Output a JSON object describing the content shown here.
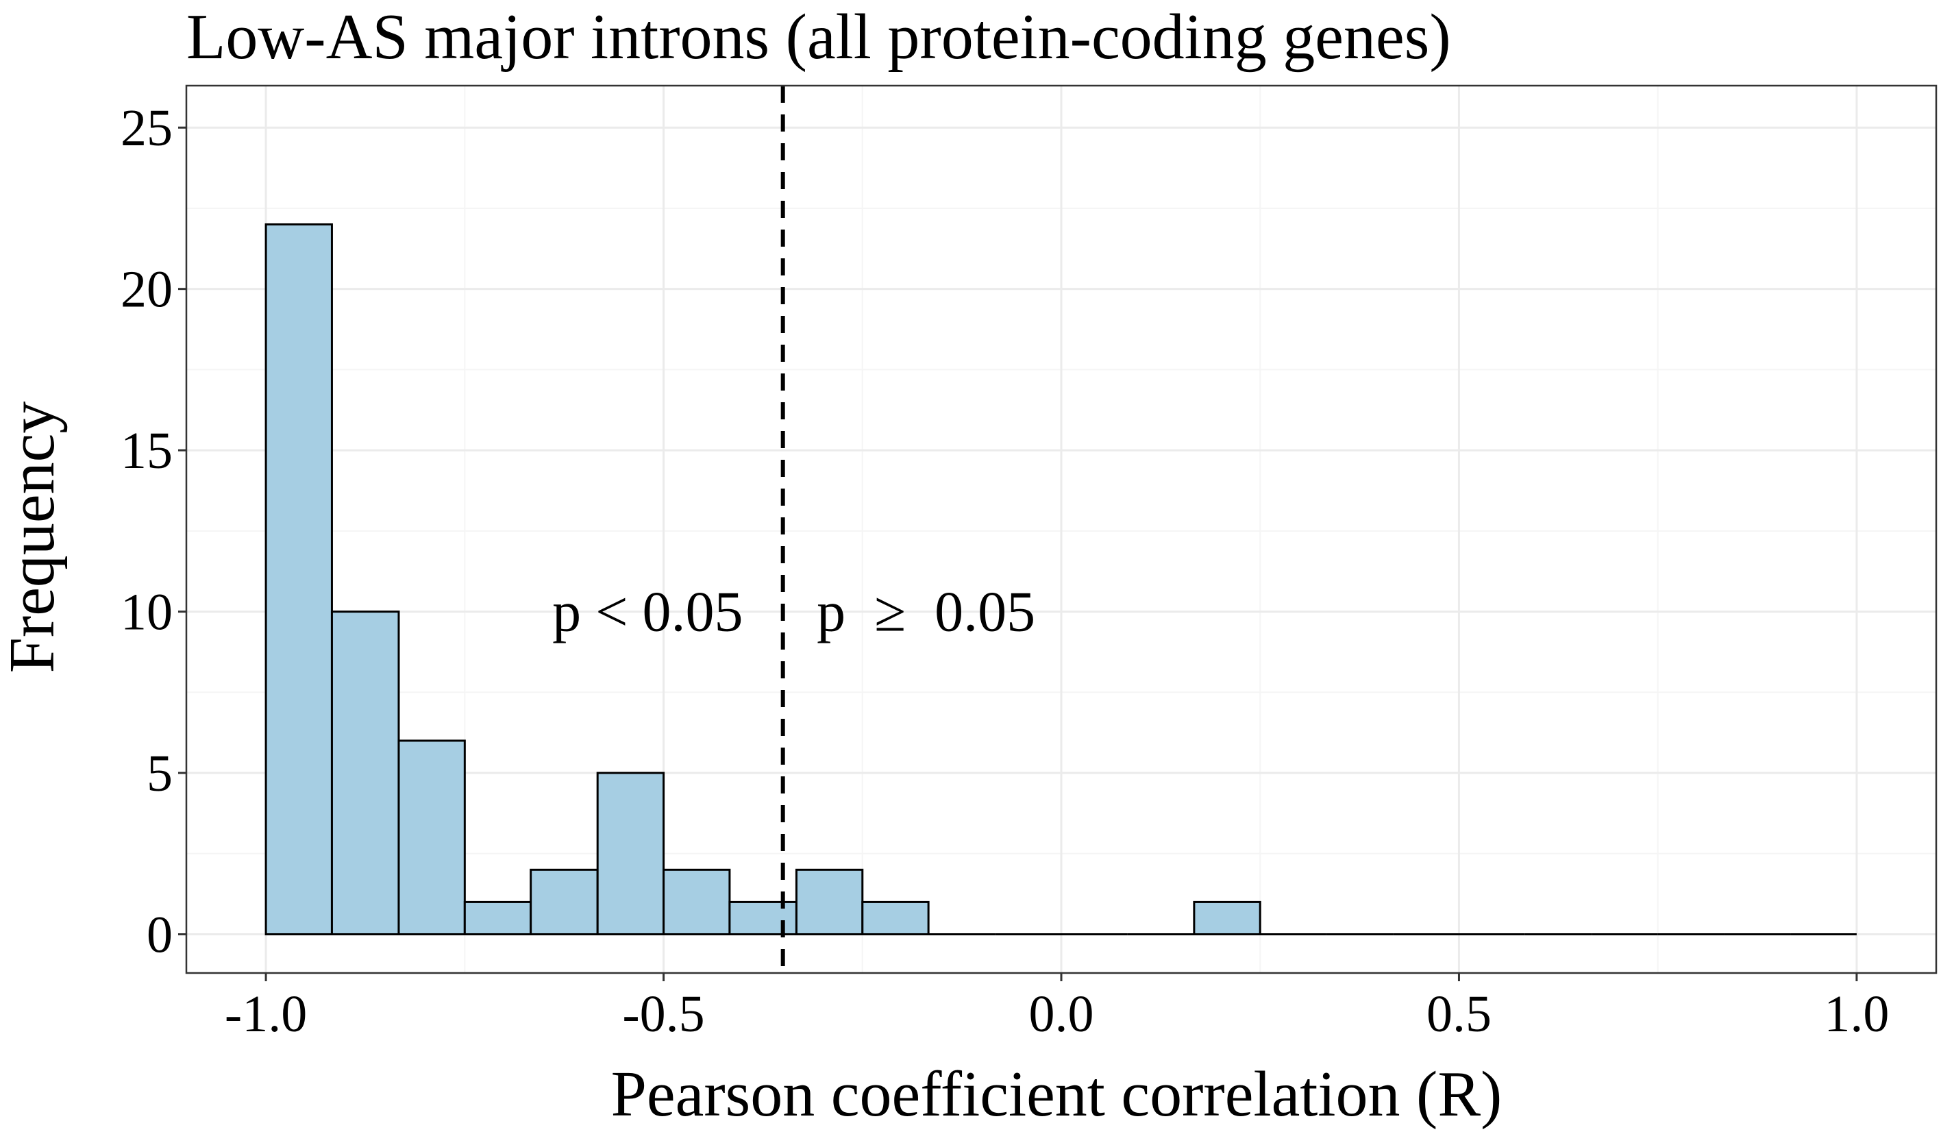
{
  "chart_data": {
    "type": "bar",
    "title": "Low-AS major introns (all protein-coding genes)",
    "xlabel": "Pearson coefficient correlation (R)",
    "ylabel": "Frequency",
    "xlim": [
      -1.1,
      1.1
    ],
    "ylim": [
      -1.2,
      26.3
    ],
    "x_ticks": [
      -1.0,
      -0.5,
      0.0,
      0.5,
      1.0
    ],
    "x_tick_labels": [
      "-1.0",
      "-0.5",
      "0.0",
      "0.5",
      "1.0"
    ],
    "y_ticks": [
      0,
      5,
      10,
      15,
      20,
      25
    ],
    "y_tick_labels": [
      "0",
      "5",
      "10",
      "15",
      "20",
      "25"
    ],
    "bin_width": 0.0833,
    "bins": [
      {
        "start": -1.0,
        "end": -0.917,
        "count": 22
      },
      {
        "start": -0.917,
        "end": -0.833,
        "count": 10
      },
      {
        "start": -0.833,
        "end": -0.75,
        "count": 6
      },
      {
        "start": -0.75,
        "end": -0.667,
        "count": 1
      },
      {
        "start": -0.667,
        "end": -0.583,
        "count": 2
      },
      {
        "start": -0.583,
        "end": -0.5,
        "count": 5
      },
      {
        "start": -0.5,
        "end": -0.417,
        "count": 2
      },
      {
        "start": -0.417,
        "end": -0.333,
        "count": 1
      },
      {
        "start": -0.333,
        "end": -0.25,
        "count": 2
      },
      {
        "start": -0.25,
        "end": -0.167,
        "count": 1
      },
      {
        "start": -0.167,
        "end": -0.083,
        "count": 0
      },
      {
        "start": -0.083,
        "end": 0.0,
        "count": 0
      },
      {
        "start": 0.0,
        "end": 0.083,
        "count": 0
      },
      {
        "start": 0.083,
        "end": 0.167,
        "count": 0
      },
      {
        "start": 0.167,
        "end": 0.25,
        "count": 1
      },
      {
        "start": 0.25,
        "end": 0.333,
        "count": 0
      },
      {
        "start": 0.333,
        "end": 0.417,
        "count": 0
      },
      {
        "start": 0.417,
        "end": 0.5,
        "count": 0
      },
      {
        "start": 0.5,
        "end": 0.583,
        "count": 0
      },
      {
        "start": 0.583,
        "end": 0.667,
        "count": 0
      },
      {
        "start": 0.667,
        "end": 0.75,
        "count": 0
      },
      {
        "start": 0.75,
        "end": 0.833,
        "count": 0
      },
      {
        "start": 0.833,
        "end": 0.917,
        "count": 0
      },
      {
        "start": 0.917,
        "end": 1.0,
        "count": 0
      }
    ],
    "threshold": {
      "x": -0.35,
      "style": "dashed"
    },
    "annotations": [
      {
        "text": "p < 0.05",
        "x": -0.52,
        "y": 10
      },
      {
        "text": "p  ≥  0.05",
        "x": -0.17,
        "y": 10
      }
    ],
    "grid": true,
    "legend": "none",
    "colors": {
      "bar_fill": "#a6cee3",
      "bar_stroke": "#000000",
      "grid_major": "#ebebeb",
      "grid_minor": "#f5f5f5",
      "panel_border": "#333333",
      "threshold_line": "#000000"
    }
  }
}
